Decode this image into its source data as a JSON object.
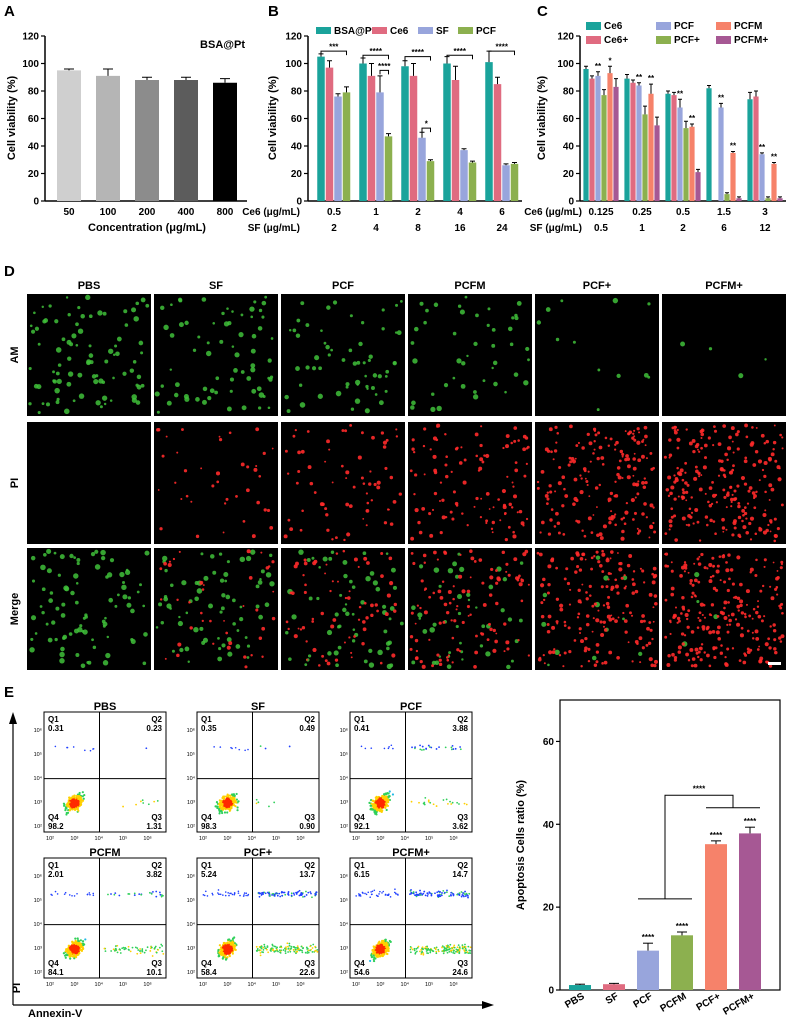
{
  "panels": {
    "A": "A",
    "B": "B",
    "C": "C",
    "D": "D",
    "E": "E"
  },
  "colors": {
    "teal": "#1aa39b",
    "pink": "#e06b80",
    "lav": "#98a5dc",
    "green": "#8cb04f",
    "salmon": "#f6826a",
    "purple": "#a65894",
    "grey": "#9a9a9a"
  },
  "chart_data": [
    {
      "id": "A",
      "type": "bar",
      "annotation": "BSA@Pt",
      "ylabel": "Cell viability (%)",
      "xlabel": "Concentration (μg/mL)",
      "ylim": [
        0,
        120
      ],
      "yticks": [
        0,
        20,
        40,
        60,
        80,
        100,
        120
      ],
      "categories": [
        "50",
        "100",
        "200",
        "400",
        "800"
      ],
      "values": [
        95,
        91,
        88,
        88,
        86
      ],
      "errors": [
        1,
        5,
        2,
        2,
        3
      ],
      "colors": [
        "#cfcfcf",
        "#b5b5b5",
        "#8c8c8c",
        "#5c5c5c",
        "#000000"
      ]
    },
    {
      "id": "B",
      "type": "bar",
      "ylabel": "Cell viability (%)",
      "ylim": [
        0,
        120
      ],
      "yticks": [
        0,
        20,
        40,
        60,
        80,
        100,
        120
      ],
      "rows": [
        {
          "label": "Ce6 (μg/mL)",
          "values": [
            "0.5",
            "1",
            "2",
            "4",
            "6"
          ]
        },
        {
          "label": "SF (μg/mL)",
          "values": [
            "2",
            "4",
            "8",
            "16",
            "24"
          ]
        }
      ],
      "series": [
        {
          "name": "BSA@Pt",
          "values": [
            105,
            100,
            98,
            100,
            101
          ],
          "errors": [
            2,
            4,
            4,
            5,
            8
          ]
        },
        {
          "name": "Ce6",
          "values": [
            97,
            91,
            91,
            88,
            85
          ],
          "errors": [
            5,
            9,
            9,
            10,
            5
          ]
        },
        {
          "name": "SF",
          "values": [
            76,
            79,
            46,
            37,
            26
          ],
          "errors": [
            2,
            12,
            4,
            1,
            1
          ]
        },
        {
          "name": "PCF",
          "values": [
            79,
            47,
            29,
            28,
            27
          ],
          "errors": [
            4,
            2,
            1,
            1,
            1
          ]
        }
      ],
      "sig": [
        {
          "g": 0,
          "from": 0,
          "to": 3,
          "y": 109,
          "label": "***"
        },
        {
          "g": 1,
          "from": 0,
          "to": 3,
          "y": 106,
          "label": "****"
        },
        {
          "g": 1,
          "from": 2,
          "to": 3,
          "y": 95,
          "label": "****"
        },
        {
          "g": 2,
          "from": 0,
          "to": 3,
          "y": 105,
          "label": "****"
        },
        {
          "g": 2,
          "from": 2,
          "to": 3,
          "y": 53,
          "label": "*"
        },
        {
          "g": 3,
          "from": 0,
          "to": 3,
          "y": 106,
          "label": "****"
        },
        {
          "g": 4,
          "from": 0,
          "to": 3,
          "y": 109,
          "label": "****"
        }
      ]
    },
    {
      "id": "C",
      "type": "bar",
      "ylabel": "Cell viability (%)",
      "ylim": [
        0,
        120
      ],
      "yticks": [
        0,
        20,
        40,
        60,
        80,
        100,
        120
      ],
      "rows": [
        {
          "label": "Ce6 (μg/mL)",
          "values": [
            "0.125",
            "0.25",
            "0.5",
            "1.5",
            "3"
          ]
        },
        {
          "label": "SF (μg/mL)",
          "values": [
            "0.5",
            "1",
            "2",
            "6",
            "12"
          ]
        }
      ],
      "series": [
        {
          "name": "Ce6",
          "values": [
            96,
            89,
            78,
            82,
            74
          ],
          "errors": [
            2,
            3,
            2,
            2,
            5
          ]
        },
        {
          "name": "Ce6+",
          "values": [
            89,
            86,
            77,
            null,
            76
          ],
          "errors": [
            2,
            2,
            2,
            0,
            4
          ]
        },
        {
          "name": "PCF",
          "values": [
            91,
            84,
            68,
            68,
            34
          ],
          "errors": [
            3,
            2,
            6,
            3,
            1
          ]
        },
        {
          "name": "PCF+",
          "values": [
            77,
            63,
            53,
            5,
            2
          ],
          "errors": [
            4,
            6,
            5,
            1,
            1
          ]
        },
        {
          "name": "PCFM",
          "values": [
            93,
            78,
            54,
            35,
            27
          ],
          "errors": [
            5,
            7,
            2,
            1,
            1
          ]
        },
        {
          "name": "PCFM+",
          "values": [
            83,
            55,
            21,
            2,
            2
          ],
          "errors": [
            6,
            6,
            2,
            1,
            1
          ]
        }
      ],
      "stars": [
        {
          "g": 0,
          "s": 2,
          "label": "**"
        },
        {
          "g": 0,
          "s": 4,
          "label": "*"
        },
        {
          "g": 1,
          "s": 2,
          "label": "**"
        },
        {
          "g": 1,
          "s": 4,
          "label": "**"
        },
        {
          "g": 2,
          "s": 2,
          "label": "**"
        },
        {
          "g": 2,
          "s": 4,
          "label": "**"
        },
        {
          "g": 3,
          "s": 2,
          "label": "**"
        },
        {
          "g": 3,
          "s": 4,
          "label": "**"
        },
        {
          "g": 4,
          "s": 2,
          "label": "**"
        },
        {
          "g": 4,
          "s": 4,
          "label": "**"
        }
      ]
    },
    {
      "id": "E",
      "type": "bar",
      "ylabel": "Apoptosis Cells ratio (%)",
      "ylim": [
        0,
        70
      ],
      "yticks": [
        0,
        20,
        40,
        60
      ],
      "categories": [
        "PBS",
        "SF",
        "PCF",
        "PCFM",
        "PCF+",
        "PCFM+"
      ],
      "values": [
        1.2,
        1.4,
        9.5,
        13.2,
        35.2,
        37.8
      ],
      "errors": [
        0.2,
        0.2,
        1.8,
        0.8,
        0.8,
        1.5
      ],
      "stars": [
        "",
        "",
        "****",
        "****",
        "****",
        "****"
      ],
      "bracket_label": "****"
    }
  ],
  "microscopy": {
    "columns": [
      "PBS",
      "SF",
      "PCF",
      "PCFM",
      "PCF+",
      "PCFM+"
    ],
    "rows": [
      "AM",
      "PI",
      "Merge"
    ],
    "green_density": [
      90,
      70,
      60,
      45,
      12,
      4
    ],
    "red_density": [
      0,
      40,
      70,
      110,
      180,
      230
    ]
  },
  "flow": {
    "yaxis": "PI",
    "xaxis": "Annexin-V",
    "ticks": [
      "10²",
      "10³",
      "10⁴",
      "10⁵",
      "10⁶"
    ],
    "plots": [
      {
        "title": "PBS",
        "q1": "0.31",
        "q2": "0.23",
        "q3": "1.31",
        "q4": "98.2"
      },
      {
        "title": "SF",
        "q1": "0.35",
        "q2": "0.49",
        "q3": "0.90",
        "q4": "98.3"
      },
      {
        "title": "PCF",
        "q1": "0.41",
        "q2": "3.88",
        "q3": "3.62",
        "q4": "92.1"
      },
      {
        "title": "PCFM",
        "q1": "2.01",
        "q2": "3.82",
        "q3": "10.1",
        "q4": "84.1"
      },
      {
        "title": "PCF+",
        "q1": "5.24",
        "q2": "13.7",
        "q3": "22.6",
        "q4": "58.4"
      },
      {
        "title": "PCFM+",
        "q1": "6.15",
        "q2": "14.7",
        "q3": "24.6",
        "q4": "54.6"
      }
    ],
    "qnames": {
      "q1": "Q1",
      "q2": "Q2",
      "q3": "Q3",
      "q4": "Q4"
    }
  }
}
